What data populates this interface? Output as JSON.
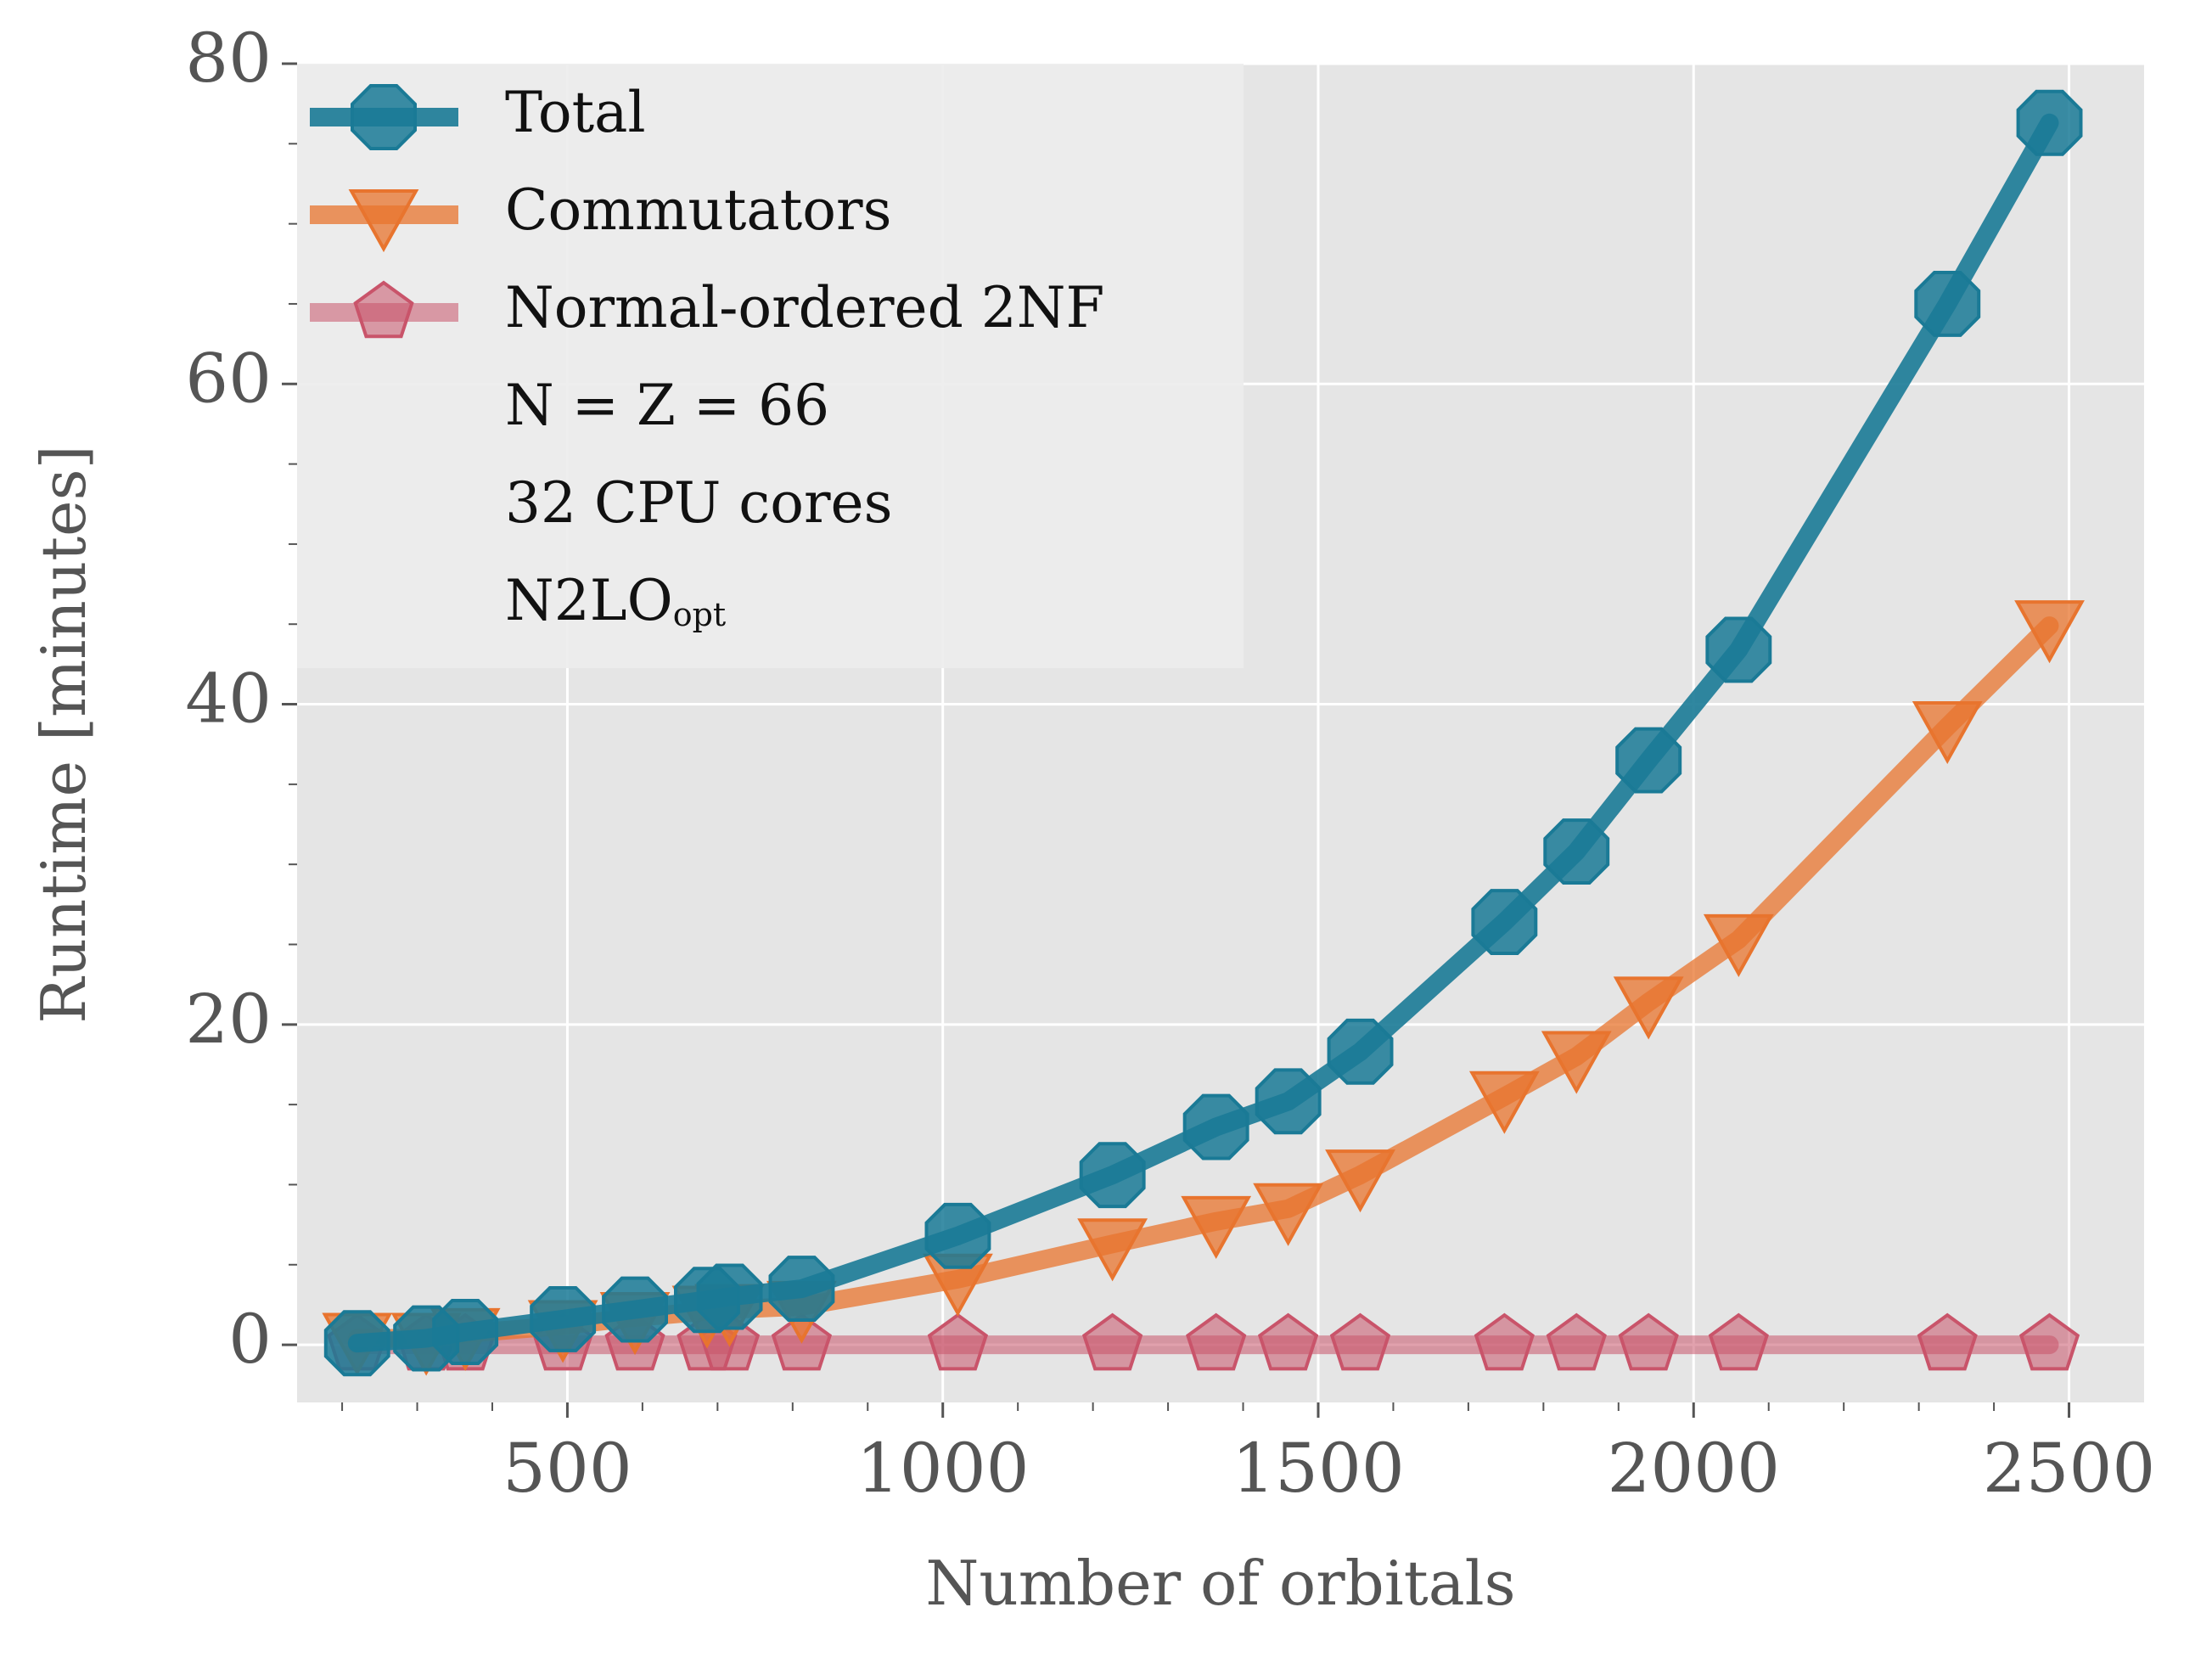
{
  "chart_data": {
    "type": "line",
    "xlabel": "Number of orbitals",
    "ylabel": "Runtime [minutes]",
    "xlim": [
      140,
      2600
    ],
    "ylim": [
      -3.6,
      80
    ],
    "xticks": [
      500,
      1000,
      1500,
      2000,
      2500
    ],
    "yticks": [
      0,
      20,
      40,
      60,
      80
    ],
    "grid": true,
    "legend_position": "top-left",
    "x": [
      220,
      312,
      364,
      494,
      590,
      686,
      716,
      812,
      1020,
      1226,
      1364,
      1460,
      1556,
      1748,
      1844,
      1940,
      2060,
      2338,
      2474
    ],
    "series": [
      {
        "name": "Total",
        "color": "#1a7a96",
        "marker": "octagon",
        "values": [
          0.1,
          0.4,
          0.8,
          1.6,
          2.2,
          2.8,
          3.0,
          3.5,
          6.8,
          10.6,
          13.6,
          15.2,
          18.3,
          26.4,
          30.8,
          36.5,
          43.4,
          65.0,
          76.3
        ]
      },
      {
        "name": "Commutators",
        "color": "#e8742e",
        "marker": "triangle-down",
        "values": [
          0.4,
          0.4,
          0.7,
          1.2,
          1.7,
          2.1,
          2.2,
          2.4,
          4.1,
          6.3,
          7.7,
          8.5,
          10.6,
          15.5,
          18.0,
          21.4,
          25.3,
          38.6,
          44.9
        ]
      },
      {
        "name": "Normal-ordered 2NF",
        "color": "#c9546a",
        "marker": "pentagon",
        "values": [
          0,
          0,
          0,
          0,
          0,
          0,
          0,
          0,
          0,
          0,
          0,
          0,
          0,
          0,
          0,
          0,
          0,
          0,
          0
        ]
      }
    ],
    "annotations": [
      "N = Z = 66",
      "32 CPU cores"
    ],
    "annotation_model": {
      "base": "N2LO",
      "sub": "opt"
    }
  }
}
